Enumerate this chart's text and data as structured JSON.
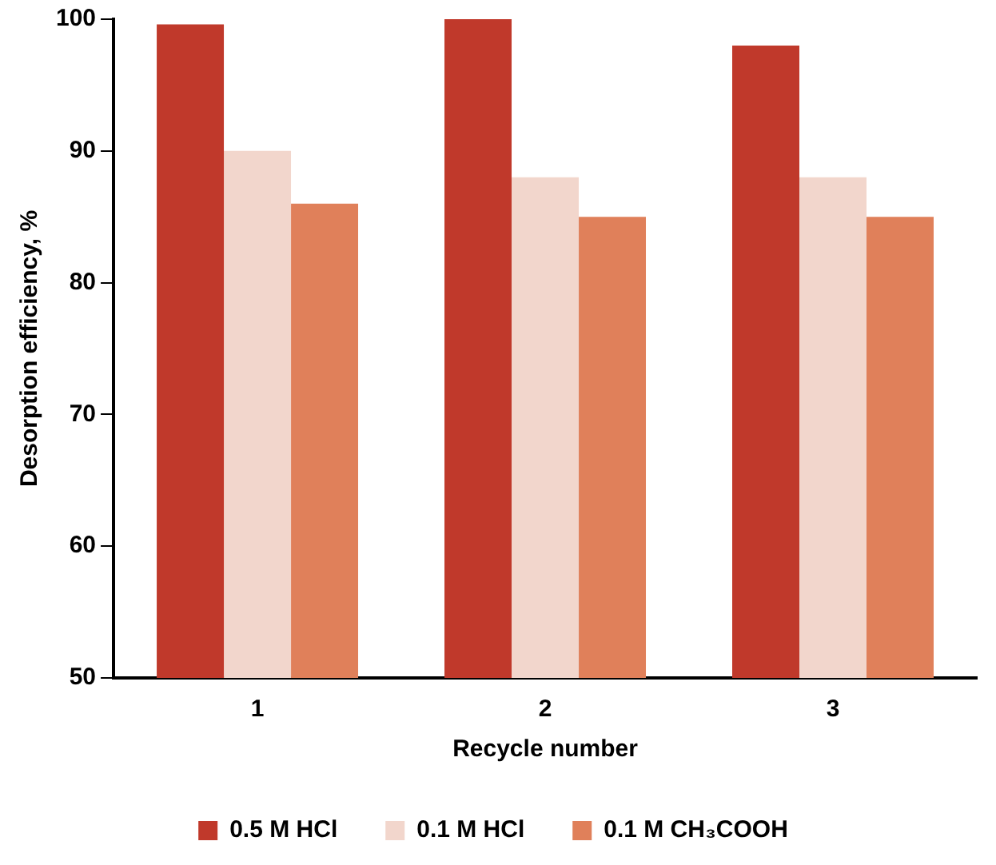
{
  "chart_data": {
    "type": "bar",
    "xlabel": "Recycle number",
    "ylabel": "Desorption efficiency, %",
    "categories": [
      "1",
      "2",
      "3"
    ],
    "series": [
      {
        "name": "0.5 M HCl",
        "color": "#c0392b",
        "values": [
          99.6,
          100,
          98
        ]
      },
      {
        "name": "0.1 M HCl",
        "color": "#f2d6cc",
        "values": [
          90,
          88,
          88
        ]
      },
      {
        "name": "0.1 M CH₃COOH",
        "color": "#e0805a",
        "values": [
          86,
          85,
          85
        ]
      }
    ],
    "ylim": [
      50,
      100
    ],
    "yticks": [
      50,
      60,
      70,
      80,
      90,
      100
    ],
    "grid": false,
    "legend": "bottom"
  }
}
